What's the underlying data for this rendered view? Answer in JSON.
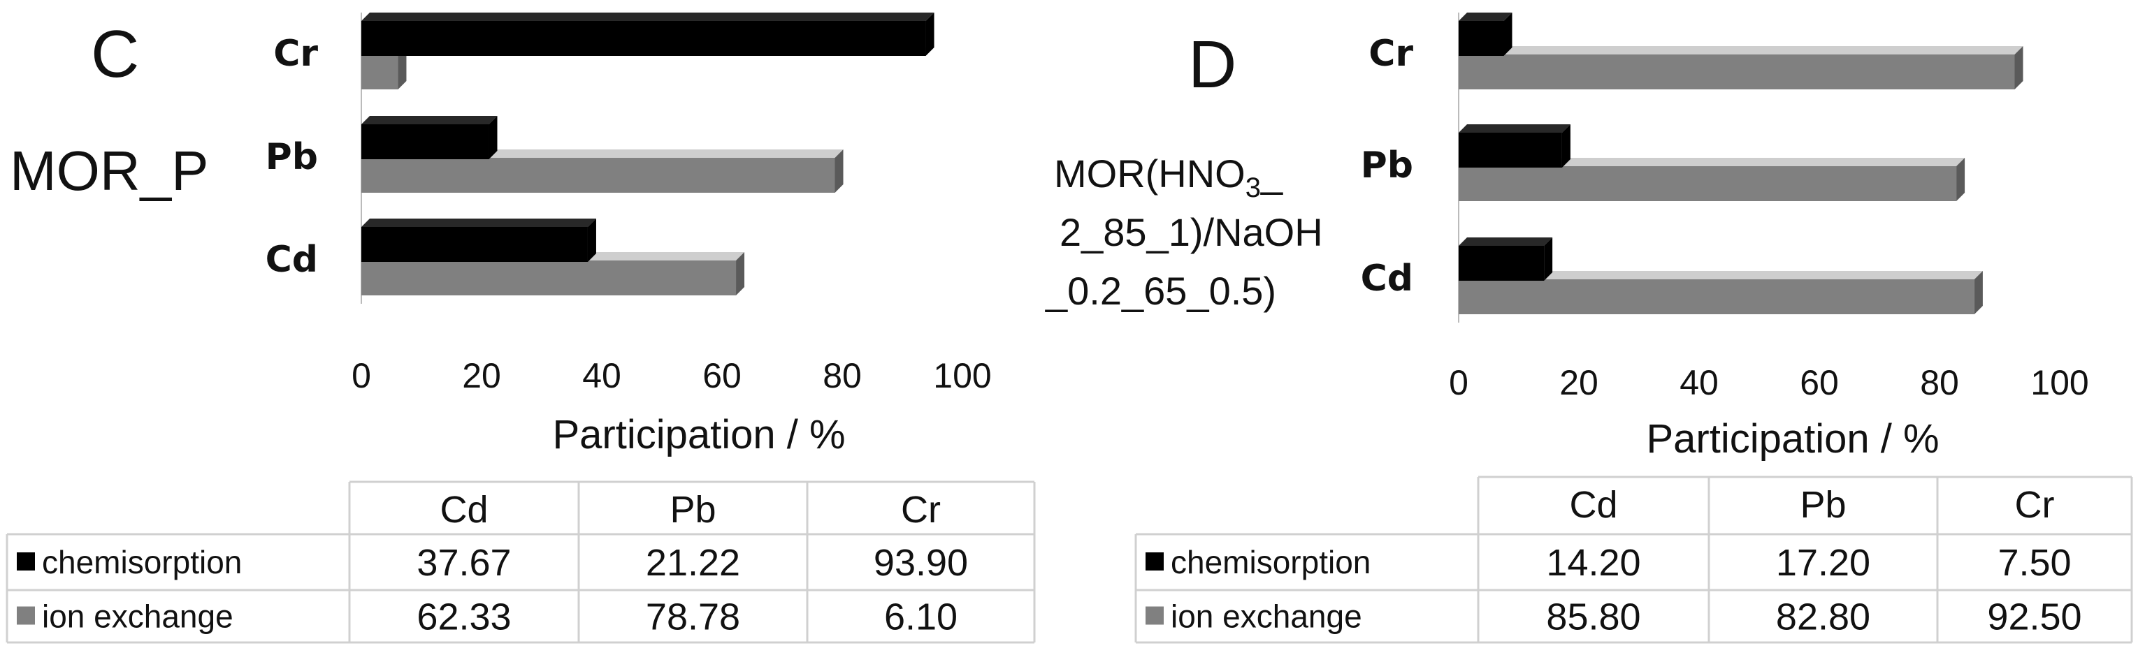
{
  "chart_data": [
    {
      "type": "bar",
      "panel": "C",
      "sample": "MOR_P",
      "categories": [
        "Cr",
        "Pb",
        "Cd"
      ],
      "series": [
        {
          "name": "chemisorption",
          "color": "#000000",
          "values": [
            93.9,
            21.22,
            37.67
          ]
        },
        {
          "name": "ion exchange",
          "color": "#808080",
          "values": [
            6.1,
            78.78,
            62.33
          ]
        }
      ],
      "xlabel": "Participation / %",
      "xlim": [
        0,
        100
      ],
      "xticks": [
        "0",
        "20",
        "40",
        "60",
        "80",
        "100"
      ],
      "table": {
        "columns": [
          "Cd",
          "Pb",
          "Cr"
        ],
        "rows": [
          {
            "label": "chemisorption",
            "values": [
              "37.67",
              "21.22",
              "93.90"
            ]
          },
          {
            "label": "ion exchange",
            "values": [
              "62.33",
              "78.78",
              "6.10"
            ]
          }
        ]
      }
    },
    {
      "type": "bar",
      "panel": "D",
      "sample_lines": [
        "MOR(HNO",
        "3",
        "_",
        "2_85_1)/NaOH",
        "_0.2_65_0.5)"
      ],
      "categories": [
        "Cr",
        "Pb",
        "Cd"
      ],
      "series": [
        {
          "name": "chemisorption",
          "color": "#000000",
          "values": [
            7.5,
            17.2,
            14.2
          ]
        },
        {
          "name": "ion exchange",
          "color": "#808080",
          "values": [
            92.5,
            82.8,
            85.8
          ]
        }
      ],
      "xlabel": "Participation / %",
      "xlim": [
        0,
        100
      ],
      "xticks": [
        "0",
        "20",
        "40",
        "60",
        "80",
        "100"
      ],
      "table": {
        "columns": [
          "Cd",
          "Pb",
          "Cr"
        ],
        "rows": [
          {
            "label": "chemisorption",
            "values": [
              "14.20",
              "17.20",
              "7.50"
            ]
          },
          {
            "label": "ion exchange",
            "values": [
              "85.80",
              "82.80",
              "92.50"
            ]
          }
        ]
      }
    }
  ]
}
